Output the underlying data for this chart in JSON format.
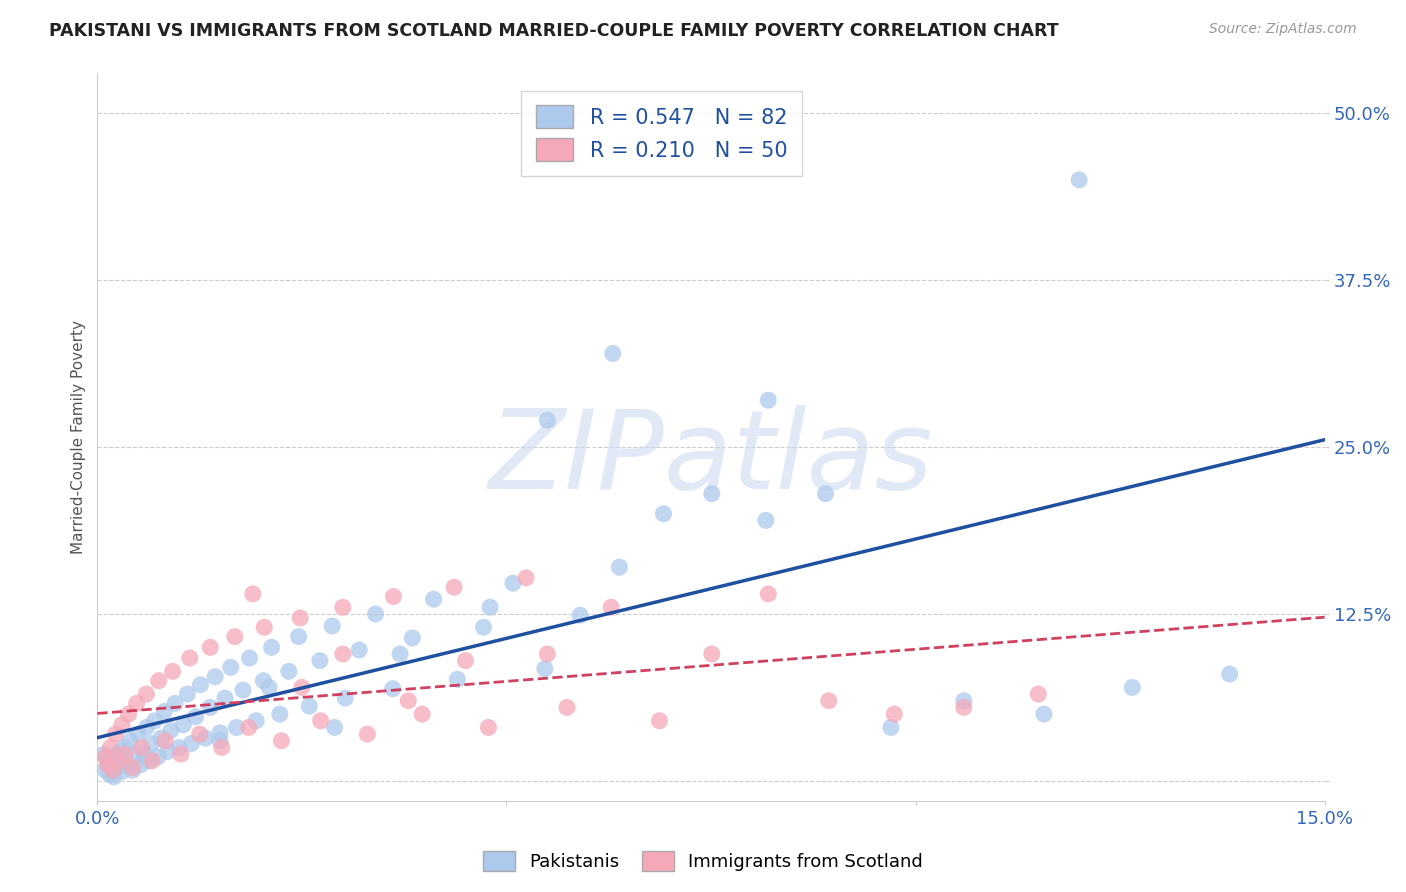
{
  "title": "PAKISTANI VS IMMIGRANTS FROM SCOTLAND MARRIED-COUPLE FAMILY POVERTY CORRELATION CHART",
  "source": "Source: ZipAtlas.com",
  "ylabel": "Married-Couple Family Poverty",
  "xlim": [
    0.0,
    0.15
  ],
  "ylim": [
    -0.015,
    0.53
  ],
  "ytick_vals": [
    0.0,
    0.125,
    0.25,
    0.375,
    0.5
  ],
  "ytick_labels": [
    "",
    "12.5%",
    "25.0%",
    "37.5%",
    "50.0%"
  ],
  "xtick_vals": [
    0.0,
    0.05,
    0.1,
    0.15
  ],
  "xtick_labels": [
    "0.0%",
    "",
    "",
    "15.0%"
  ],
  "blue_R": "0.547",
  "blue_N": "82",
  "pink_R": "0.210",
  "pink_N": "50",
  "blue_color": "#adc9eb",
  "blue_line_color": "#2050a0",
  "pink_color": "#f5a8b8",
  "pink_line_color": "#d04060",
  "watermark": "ZIPatlas",
  "background_color": "#ffffff",
  "grid_color": "#cccccc",
  "title_color": "#222222",
  "axis_label_color": "#3366bb",
  "legend_edge_color": "#cccccc",
  "blue_x": [
    0.0008,
    0.001,
    0.0012,
    0.0015,
    0.0018,
    0.002,
    0.0022,
    0.0025,
    0.0028,
    0.003,
    0.0033,
    0.0036,
    0.004,
    0.0043,
    0.0046,
    0.005,
    0.0053,
    0.0056,
    0.006,
    0.0063,
    0.0066,
    0.007,
    0.0074,
    0.0078,
    0.0082,
    0.0086,
    0.009,
    0.0095,
    0.01,
    0.0105,
    0.011,
    0.0115,
    0.012,
    0.0126,
    0.0132,
    0.0138,
    0.0144,
    0.015,
    0.0156,
    0.0163,
    0.017,
    0.0178,
    0.0186,
    0.0194,
    0.0203,
    0.0213,
    0.0223,
    0.0234,
    0.0246,
    0.0259,
    0.0272,
    0.0287,
    0.0303,
    0.032,
    0.034,
    0.0361,
    0.0385,
    0.0411,
    0.044,
    0.0472,
    0.0508,
    0.0547,
    0.059,
    0.0638,
    0.0692,
    0.0751,
    0.0817,
    0.089,
    0.097,
    0.1059,
    0.1157,
    0.1265,
    0.1384,
    0.12,
    0.063,
    0.082,
    0.055,
    0.048,
    0.037,
    0.029,
    0.021,
    0.015
  ],
  "blue_y": [
    0.02,
    0.008,
    0.012,
    0.005,
    0.015,
    0.003,
    0.018,
    0.01,
    0.022,
    0.007,
    0.025,
    0.013,
    0.03,
    0.008,
    0.018,
    0.035,
    0.012,
    0.022,
    0.04,
    0.015,
    0.028,
    0.045,
    0.018,
    0.032,
    0.052,
    0.022,
    0.038,
    0.058,
    0.025,
    0.042,
    0.065,
    0.028,
    0.048,
    0.072,
    0.032,
    0.055,
    0.078,
    0.036,
    0.062,
    0.085,
    0.04,
    0.068,
    0.092,
    0.045,
    0.075,
    0.1,
    0.05,
    0.082,
    0.108,
    0.056,
    0.09,
    0.116,
    0.062,
    0.098,
    0.125,
    0.069,
    0.107,
    0.136,
    0.076,
    0.115,
    0.148,
    0.084,
    0.124,
    0.16,
    0.2,
    0.215,
    0.195,
    0.215,
    0.04,
    0.06,
    0.05,
    0.07,
    0.08,
    0.45,
    0.32,
    0.285,
    0.27,
    0.13,
    0.095,
    0.04,
    0.07,
    0.03
  ],
  "pink_x": [
    0.001,
    0.0013,
    0.0016,
    0.0019,
    0.0022,
    0.0026,
    0.003,
    0.0034,
    0.0038,
    0.0043,
    0.0048,
    0.0054,
    0.006,
    0.0067,
    0.0075,
    0.0083,
    0.0092,
    0.0102,
    0.0113,
    0.0125,
    0.0138,
    0.0152,
    0.0168,
    0.0185,
    0.0204,
    0.0225,
    0.0248,
    0.0273,
    0.03,
    0.033,
    0.0362,
    0.0397,
    0.0436,
    0.0478,
    0.0524,
    0.0574,
    0.0628,
    0.0687,
    0.0751,
    0.082,
    0.0894,
    0.0974,
    0.1059,
    0.115,
    0.03,
    0.045,
    0.055,
    0.038,
    0.025,
    0.019
  ],
  "pink_y": [
    0.018,
    0.012,
    0.025,
    0.008,
    0.035,
    0.015,
    0.042,
    0.02,
    0.05,
    0.01,
    0.058,
    0.025,
    0.065,
    0.015,
    0.075,
    0.03,
    0.082,
    0.02,
    0.092,
    0.035,
    0.1,
    0.025,
    0.108,
    0.04,
    0.115,
    0.03,
    0.122,
    0.045,
    0.13,
    0.035,
    0.138,
    0.05,
    0.145,
    0.04,
    0.152,
    0.055,
    0.13,
    0.045,
    0.095,
    0.14,
    0.06,
    0.05,
    0.055,
    0.065,
    0.095,
    0.09,
    0.095,
    0.06,
    0.07,
    0.14
  ]
}
